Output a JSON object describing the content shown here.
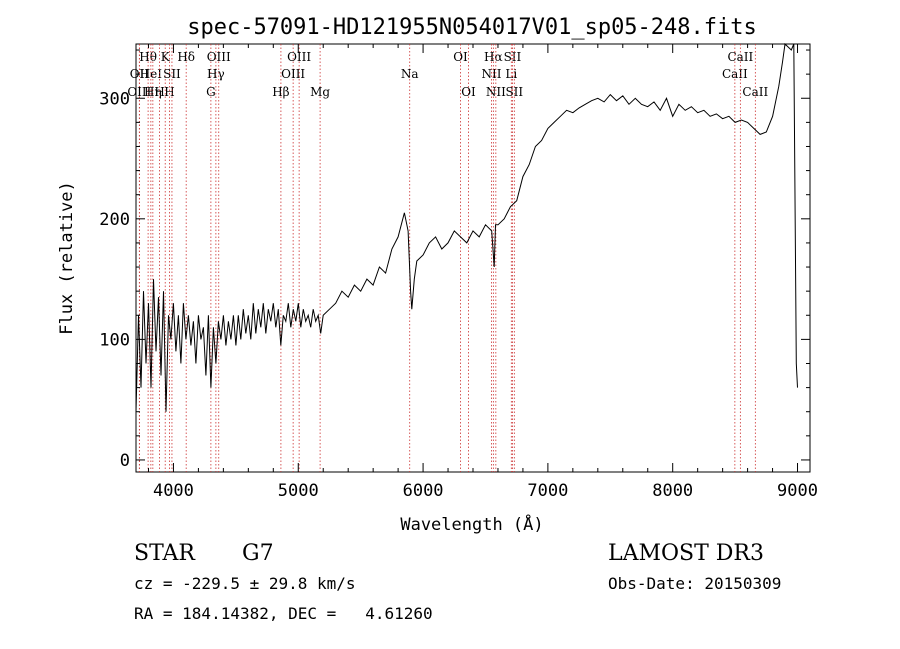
{
  "chart_data": {
    "type": "line",
    "title": "spec-57091-HD121955N054017V01_sp05-248.fits",
    "xlabel": "Wavelength (Å)",
    "ylabel": "Flux (relative)",
    "xlim": [
      3700,
      9100
    ],
    "ylim": [
      -10,
      345
    ],
    "x_ticks": [
      4000,
      5000,
      6000,
      7000,
      8000,
      9000
    ],
    "x_tick_labels": [
      "4000",
      "5000",
      "6000",
      "7000",
      "8000",
      "9000"
    ],
    "y_ticks": [
      0,
      100,
      200,
      300
    ],
    "y_tick_labels": [
      "0",
      "100",
      "200",
      "300"
    ],
    "grid": false,
    "line_color": "#000000",
    "marker_color": "#cc3333",
    "series": [
      {
        "name": "flux",
        "points": [
          [
            3700,
            40
          ],
          [
            3720,
            120
          ],
          [
            3740,
            60
          ],
          [
            3760,
            140
          ],
          [
            3780,
            80
          ],
          [
            3800,
            130
          ],
          [
            3820,
            60
          ],
          [
            3840,
            150
          ],
          [
            3860,
            90
          ],
          [
            3880,
            135
          ],
          [
            3900,
            70
          ],
          [
            3920,
            140
          ],
          [
            3940,
            40
          ],
          [
            3960,
            120
          ],
          [
            3980,
            100
          ],
          [
            4000,
            130
          ],
          [
            4020,
            90
          ],
          [
            4040,
            120
          ],
          [
            4060,
            80
          ],
          [
            4080,
            130
          ],
          [
            4100,
            100
          ],
          [
            4120,
            120
          ],
          [
            4140,
            95
          ],
          [
            4160,
            115
          ],
          [
            4180,
            80
          ],
          [
            4200,
            120
          ],
          [
            4220,
            100
          ],
          [
            4240,
            110
          ],
          [
            4260,
            70
          ],
          [
            4280,
            120
          ],
          [
            4300,
            60
          ],
          [
            4320,
            110
          ],
          [
            4340,
            80
          ],
          [
            4360,
            115
          ],
          [
            4380,
            100
          ],
          [
            4400,
            120
          ],
          [
            4420,
            95
          ],
          [
            4440,
            115
          ],
          [
            4460,
            100
          ],
          [
            4480,
            120
          ],
          [
            4500,
            95
          ],
          [
            4520,
            120
          ],
          [
            4540,
            100
          ],
          [
            4560,
            125
          ],
          [
            4580,
            105
          ],
          [
            4600,
            120
          ],
          [
            4620,
            100
          ],
          [
            4640,
            130
          ],
          [
            4660,
            105
          ],
          [
            4680,
            125
          ],
          [
            4700,
            110
          ],
          [
            4720,
            130
          ],
          [
            4740,
            105
          ],
          [
            4760,
            125
          ],
          [
            4780,
            115
          ],
          [
            4800,
            130
          ],
          [
            4820,
            110
          ],
          [
            4840,
            125
          ],
          [
            4860,
            95
          ],
          [
            4880,
            120
          ],
          [
            4900,
            115
          ],
          [
            4920,
            130
          ],
          [
            4940,
            110
          ],
          [
            4960,
            125
          ],
          [
            4980,
            115
          ],
          [
            5000,
            130
          ],
          [
            5020,
            110
          ],
          [
            5040,
            125
          ],
          [
            5060,
            115
          ],
          [
            5080,
            120
          ],
          [
            5100,
            110
          ],
          [
            5120,
            125
          ],
          [
            5140,
            115
          ],
          [
            5160,
            120
          ],
          [
            5180,
            105
          ],
          [
            5200,
            120
          ],
          [
            5250,
            125
          ],
          [
            5300,
            130
          ],
          [
            5350,
            140
          ],
          [
            5400,
            135
          ],
          [
            5450,
            145
          ],
          [
            5500,
            140
          ],
          [
            5550,
            150
          ],
          [
            5600,
            145
          ],
          [
            5650,
            160
          ],
          [
            5700,
            155
          ],
          [
            5750,
            175
          ],
          [
            5800,
            185
          ],
          [
            5850,
            205
          ],
          [
            5880,
            190
          ],
          [
            5900,
            140
          ],
          [
            5910,
            125
          ],
          [
            5930,
            150
          ],
          [
            5950,
            165
          ],
          [
            6000,
            170
          ],
          [
            6050,
            180
          ],
          [
            6100,
            185
          ],
          [
            6150,
            175
          ],
          [
            6200,
            180
          ],
          [
            6250,
            190
          ],
          [
            6300,
            185
          ],
          [
            6350,
            180
          ],
          [
            6400,
            190
          ],
          [
            6450,
            185
          ],
          [
            6500,
            195
          ],
          [
            6550,
            190
          ],
          [
            6570,
            160
          ],
          [
            6580,
            195
          ],
          [
            6600,
            195
          ],
          [
            6650,
            200
          ],
          [
            6700,
            210
          ],
          [
            6750,
            215
          ],
          [
            6800,
            235
          ],
          [
            6850,
            245
          ],
          [
            6900,
            260
          ],
          [
            6950,
            265
          ],
          [
            7000,
            275
          ],
          [
            7050,
            280
          ],
          [
            7100,
            285
          ],
          [
            7150,
            290
          ],
          [
            7200,
            288
          ],
          [
            7250,
            292
          ],
          [
            7300,
            295
          ],
          [
            7350,
            298
          ],
          [
            7400,
            300
          ],
          [
            7450,
            297
          ],
          [
            7500,
            303
          ],
          [
            7550,
            298
          ],
          [
            7600,
            302
          ],
          [
            7650,
            295
          ],
          [
            7700,
            300
          ],
          [
            7750,
            295
          ],
          [
            7800,
            293
          ],
          [
            7850,
            297
          ],
          [
            7900,
            290
          ],
          [
            7950,
            300
          ],
          [
            8000,
            285
          ],
          [
            8050,
            295
          ],
          [
            8100,
            290
          ],
          [
            8150,
            293
          ],
          [
            8200,
            288
          ],
          [
            8250,
            290
          ],
          [
            8300,
            285
          ],
          [
            8350,
            287
          ],
          [
            8400,
            283
          ],
          [
            8450,
            285
          ],
          [
            8500,
            280
          ],
          [
            8550,
            282
          ],
          [
            8600,
            280
          ],
          [
            8650,
            275
          ],
          [
            8700,
            270
          ],
          [
            8750,
            272
          ],
          [
            8800,
            285
          ],
          [
            8850,
            310
          ],
          [
            8880,
            330
          ],
          [
            8900,
            345
          ],
          [
            8950,
            340
          ],
          [
            8970,
            345
          ],
          [
            8990,
            80
          ],
          [
            9000,
            60
          ]
        ]
      }
    ],
    "line_markers": [
      {
        "x": 3797,
        "label": "Hθ",
        "row": 0
      },
      {
        "x": 3727,
        "label": "OII",
        "row": 1
      },
      {
        "x": 3727,
        "label": "OIII",
        "row": 2
      },
      {
        "x": 3819,
        "label": "HeI",
        "row": 1
      },
      {
        "x": 3835,
        "label": "Hη",
        "row": 2
      },
      {
        "x": 3889,
        "label": "H",
        "row": 2
      },
      {
        "x": 3934,
        "label": "K",
        "row": 0
      },
      {
        "x": 3968,
        "label": "H",
        "row": 2
      },
      {
        "x": 3988,
        "label": "SII",
        "row": 1
      },
      {
        "x": 4102,
        "label": "Hδ",
        "row": 0
      },
      {
        "x": 4300,
        "label": "G",
        "row": 2
      },
      {
        "x": 4340,
        "label": "Hγ",
        "row": 1
      },
      {
        "x": 4363,
        "label": "OIII",
        "row": 0
      },
      {
        "x": 4861,
        "label": "Hβ",
        "row": 2
      },
      {
        "x": 4959,
        "label": "OIII",
        "row": 1
      },
      {
        "x": 5007,
        "label": "OIII",
        "row": 0
      },
      {
        "x": 5175,
        "label": "Mg",
        "row": 2
      },
      {
        "x": 5893,
        "label": "Na",
        "row": 1
      },
      {
        "x": 6300,
        "label": "OI",
        "row": 0
      },
      {
        "x": 6364,
        "label": "OI",
        "row": 2
      },
      {
        "x": 6548,
        "label": "NII",
        "row": 1
      },
      {
        "x": 6563,
        "label": "Hα",
        "row": 0
      },
      {
        "x": 6583,
        "label": "NII",
        "row": 2
      },
      {
        "x": 6707,
        "label": "Li",
        "row": 1
      },
      {
        "x": 6716,
        "label": "SII",
        "row": 0
      },
      {
        "x": 6731,
        "label": "SII",
        "row": 2
      },
      {
        "x": 8498,
        "label": "CaII",
        "row": 1
      },
      {
        "x": 8542,
        "label": "CaII",
        "row": 0
      },
      {
        "x": 8662,
        "label": "CaII",
        "row": 2
      }
    ]
  },
  "info": {
    "object_class": "STAR",
    "subclass": "G7",
    "survey": "LAMOST DR3",
    "cz": "cz = -229.5 ± 29.8 km/s",
    "obs_date": "Obs-Date: 20150309",
    "coords": "RA = 184.14382, DEC =   4.61260"
  }
}
